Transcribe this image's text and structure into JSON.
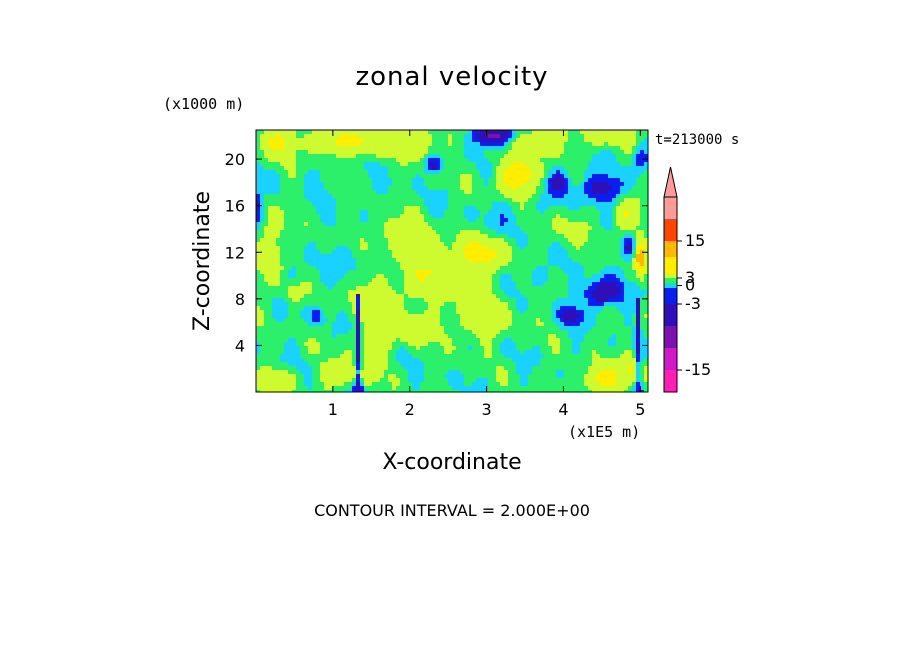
{
  "chart_data": {
    "type": "heatmap",
    "title": "zonal velocity",
    "xlabel": "X-coordinate",
    "ylabel": "Z-coordinate",
    "x_unit": "(x1E5 m)",
    "y_unit": "(x1000 m)",
    "time_label": "t=213000 s",
    "footer": "CONTOUR INTERVAL = 2.000E+00",
    "xlim": [
      0,
      5.1
    ],
    "ylim": [
      0,
      22.5
    ],
    "x_ticks": [
      "1",
      "2",
      "3",
      "4",
      "5"
    ],
    "x_tick_values": [
      1,
      2,
      3,
      4,
      5
    ],
    "y_ticks": [
      "4",
      "8",
      "12",
      "16",
      "20"
    ],
    "y_tick_values": [
      4,
      8,
      12,
      16,
      20
    ],
    "contour_interval": 2,
    "colorbar": {
      "levels": [
        -19,
        -15,
        -11,
        -7,
        -3,
        -1,
        1,
        3,
        7,
        11,
        15,
        19
      ],
      "labels": [
        "15",
        "3",
        "0",
        "-3",
        "-15"
      ],
      "label_values": [
        15,
        3,
        0,
        -3,
        -15
      ],
      "colors": [
        "#ff1fb4",
        "#d018c8",
        "#7c10b0",
        "#2f10b8",
        "#0a1ef0",
        "#19d2ff",
        "#2cf06a",
        "#cdfb2f",
        "#ffee00",
        "#ffb800",
        "#ff4500",
        "#ff9a9a"
      ]
    },
    "field_blobs": [
      {
        "x": 0.3,
        "z": 21.5,
        "v": 6,
        "sx": 0.25,
        "sz": 1.2
      },
      {
        "x": 0.9,
        "z": 21.5,
        "v": 5,
        "sx": 0.25,
        "sz": 1.2
      },
      {
        "x": 1.4,
        "z": 21.5,
        "v": 6,
        "sx": 0.3,
        "sz": 1.2
      },
      {
        "x": 2.1,
        "z": 21.5,
        "v": 5,
        "sx": 0.3,
        "sz": 1.2
      },
      {
        "x": 3.1,
        "z": 22.0,
        "v": -10,
        "sx": 0.25,
        "sz": 0.8
      },
      {
        "x": 3.7,
        "z": 21.5,
        "v": 5,
        "sx": 0.3,
        "sz": 1.2
      },
      {
        "x": 4.6,
        "z": 22.0,
        "v": 5,
        "sx": 0.3,
        "sz": 0.8
      },
      {
        "x": 2.3,
        "z": 19.5,
        "v": -6,
        "sx": 0.1,
        "sz": 0.7
      },
      {
        "x": 3.4,
        "z": 18.5,
        "v": 9,
        "sx": 0.25,
        "sz": 1.5
      },
      {
        "x": 3.95,
        "z": 18.0,
        "v": -6,
        "sx": 0.15,
        "sz": 1.0
      },
      {
        "x": 4.5,
        "z": 17.5,
        "v": -6,
        "sx": 0.3,
        "sz": 1.2
      },
      {
        "x": 5.0,
        "z": 20.0,
        "v": -5,
        "sx": 0.1,
        "sz": 1.0
      },
      {
        "x": 0.0,
        "z": 16.0,
        "v": -5,
        "sx": 0.08,
        "sz": 1.5
      },
      {
        "x": 0.2,
        "z": 12.0,
        "v": 5,
        "sx": 0.15,
        "sz": 3.0
      },
      {
        "x": 0.6,
        "z": 10.0,
        "v": -1,
        "sx": 0.3,
        "sz": 2.0
      },
      {
        "x": 1.25,
        "z": 11.5,
        "v": -1.5,
        "sx": 0.25,
        "sz": 1.2
      },
      {
        "x": 0.5,
        "z": 8.5,
        "v": 5,
        "sx": 0.12,
        "sz": 0.8
      },
      {
        "x": 0.8,
        "z": 6.5,
        "v": -3.5,
        "sx": 0.1,
        "sz": 0.8
      },
      {
        "x": 1.6,
        "z": 8.0,
        "v": 5,
        "sx": 0.35,
        "sz": 1.5
      },
      {
        "x": 2.4,
        "z": 10.5,
        "v": 6,
        "sx": 0.4,
        "sz": 2.0
      },
      {
        "x": 3.0,
        "z": 12.0,
        "v": 6,
        "sx": 0.3,
        "sz": 1.5
      },
      {
        "x": 1.9,
        "z": 13.5,
        "v": 5,
        "sx": 0.3,
        "sz": 1.5
      },
      {
        "x": 1.5,
        "z": 4.0,
        "v": 5,
        "sx": 0.25,
        "sz": 1.5
      },
      {
        "x": 2.0,
        "z": 5.5,
        "v": 5,
        "sx": 0.3,
        "sz": 1.2
      },
      {
        "x": 2.9,
        "z": 6.5,
        "v": 4,
        "sx": 0.4,
        "sz": 2.0
      },
      {
        "x": 1.2,
        "z": 1.5,
        "v": 6,
        "sx": 0.3,
        "sz": 1.0
      },
      {
        "x": 0.3,
        "z": 1.0,
        "v": 5,
        "sx": 0.2,
        "sz": 1.0
      },
      {
        "x": 4.5,
        "z": 1.0,
        "v": 7,
        "sx": 0.25,
        "sz": 1.2
      },
      {
        "x": 4.9,
        "z": 2.0,
        "v": 6,
        "sx": 0.15,
        "sz": 1.5
      },
      {
        "x": 3.7,
        "z": 10.0,
        "v": -2.5,
        "sx": 0.15,
        "sz": 1.0
      },
      {
        "x": 4.5,
        "z": 8.5,
        "v": -8,
        "sx": 0.25,
        "sz": 1.2
      },
      {
        "x": 4.1,
        "z": 6.5,
        "v": -6,
        "sx": 0.15,
        "sz": 0.8
      },
      {
        "x": 5.0,
        "z": 11.5,
        "v": 12,
        "sx": 0.06,
        "sz": 1.5
      },
      {
        "x": 4.85,
        "z": 12.5,
        "v": -5,
        "sx": 0.08,
        "sz": 1.0
      },
      {
        "x": 4.8,
        "z": 15.0,
        "v": 5,
        "sx": 0.15,
        "sz": 1.5
      },
      {
        "x": 3.3,
        "z": 15.0,
        "v": -1.5,
        "sx": 0.4,
        "sz": 2.0
      },
      {
        "x": 0.9,
        "z": 18.0,
        "v": -1,
        "sx": 0.3,
        "sz": 1.2
      },
      {
        "x": 4.0,
        "z": 14.0,
        "v": 2,
        "sx": 0.3,
        "sz": 1.5
      }
    ],
    "field_streaks": [
      {
        "x": 1.33,
        "z0": 0,
        "z1": 8.5,
        "v": -8
      },
      {
        "x": 4.97,
        "z0": 0,
        "z1": 8.0,
        "v": -6
      }
    ]
  }
}
